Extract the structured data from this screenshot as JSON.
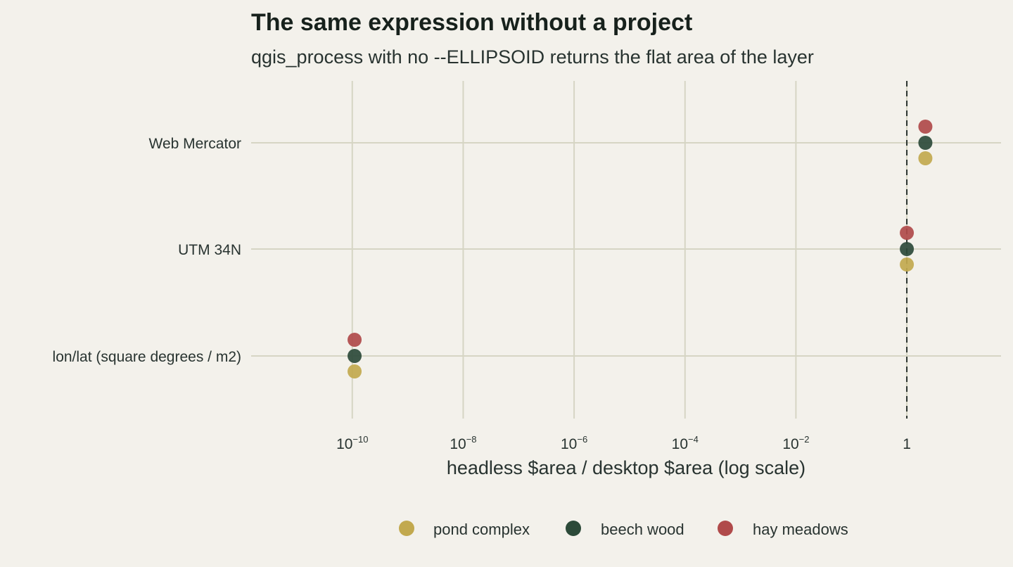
{
  "chart_data": {
    "type": "scatter",
    "title": "The same expression without a project",
    "subtitle": "qgis_process with no --ELLIPSOID returns the flat area of the layer",
    "xlabel": "headless $area / desktop $area (log scale)",
    "ylabel": "",
    "x_scale": "log10",
    "xlim": [
      1.5e-12,
      50.0
    ],
    "x_ticks": [
      {
        "value": 1e-10,
        "base": "10",
        "exp": "−10"
      },
      {
        "value": 1e-08,
        "base": "10",
        "exp": "−8"
      },
      {
        "value": 1e-06,
        "base": "10",
        "exp": "−6"
      },
      {
        "value": 0.0001,
        "base": "10",
        "exp": "−4"
      },
      {
        "value": 0.01,
        "base": "10",
        "exp": "−2"
      },
      {
        "value": 1,
        "base": "1",
        "exp": ""
      }
    ],
    "reference_line": {
      "x": 1,
      "style": "dashed",
      "color": "#2a332f"
    },
    "categories": [
      "Web Mercator",
      "UTM 34N",
      "lon/lat (square degrees / m2)"
    ],
    "series": [
      {
        "name": "pond complex",
        "color": "#c2a94e",
        "values": [
          2.16,
          1.0,
          1.1e-10
        ]
      },
      {
        "name": "beech wood",
        "color": "#2c4a39",
        "values": [
          2.16,
          1.0,
          1.1e-10
        ]
      },
      {
        "name": "hay meadows",
        "color": "#b04a4a",
        "values": [
          2.16,
          1.0,
          1.1e-10
        ]
      }
    ],
    "grid": true,
    "legend": "bottom"
  }
}
